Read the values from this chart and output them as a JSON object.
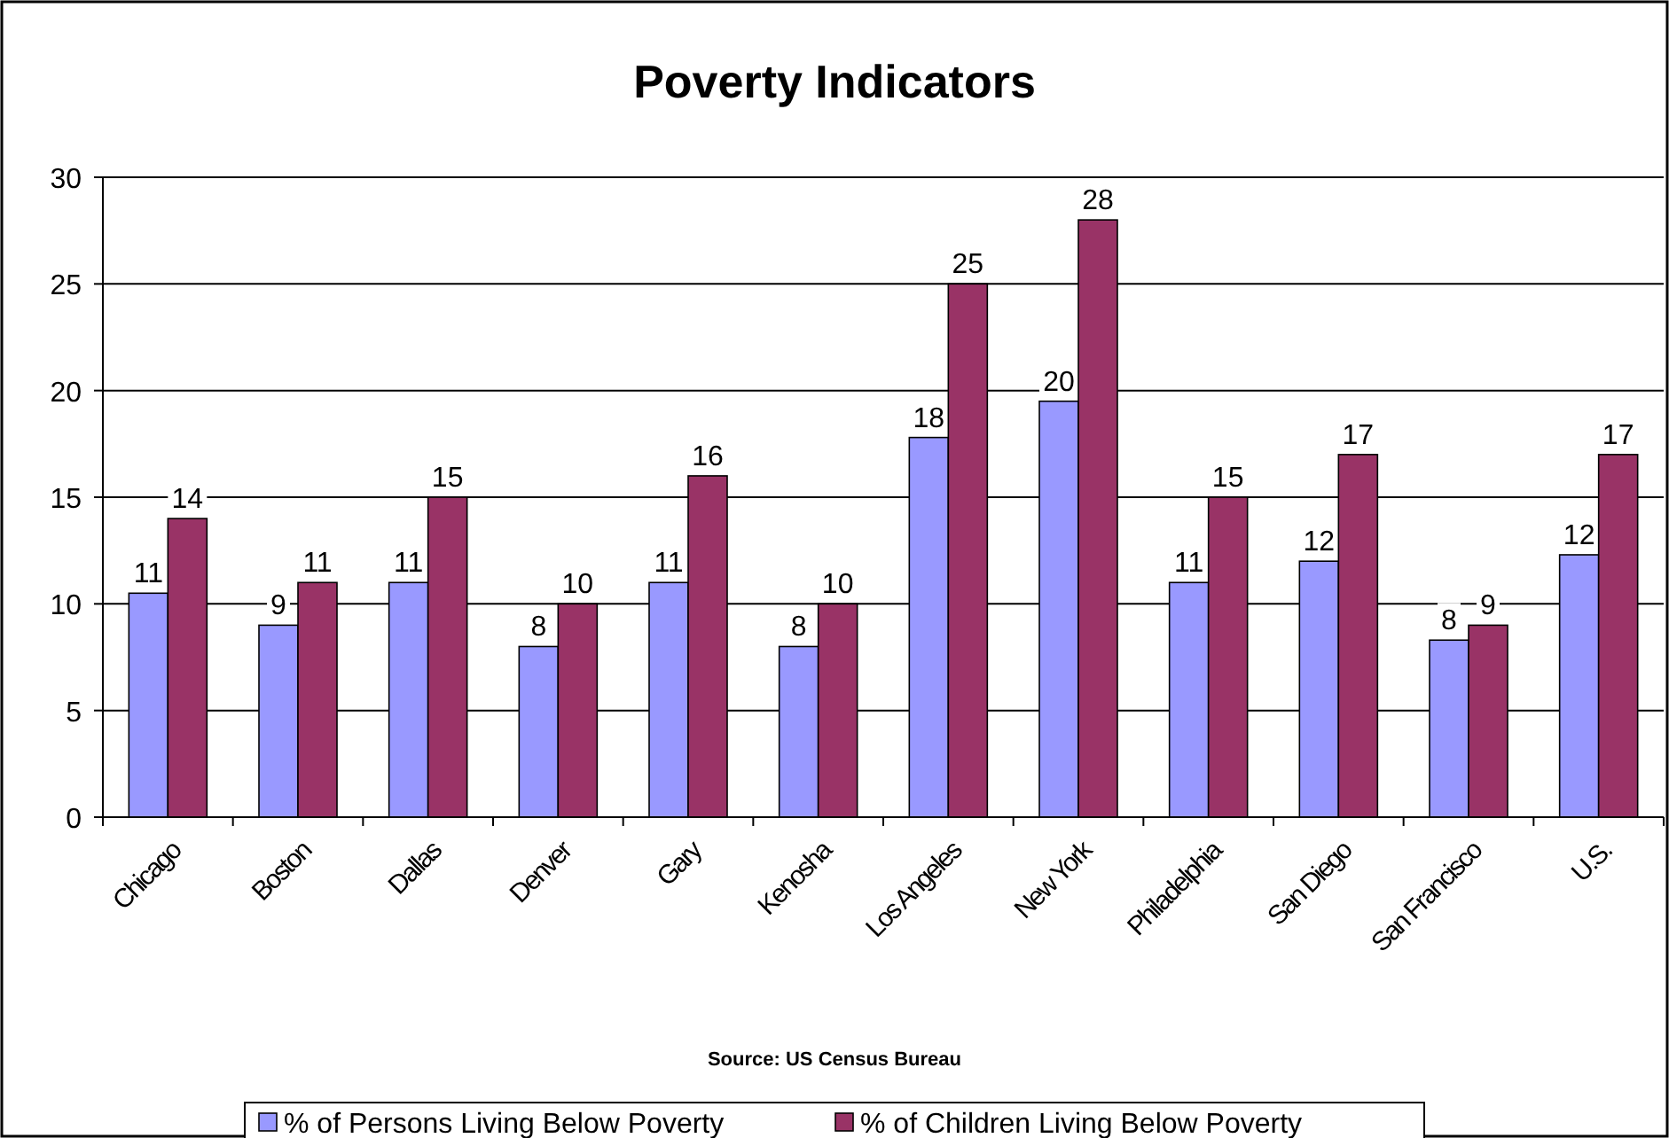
{
  "chart_data": {
    "type": "bar",
    "title": "Poverty Indicators",
    "categories": [
      "Chicago",
      "Boston",
      "Dallas",
      "Denver",
      "Gary",
      "Kenosha",
      "Los Angeles",
      "New York",
      "Philadelphia",
      "San Diego",
      "San Francisco",
      "U.S."
    ],
    "series": [
      {
        "name": "% of Persons Living Below Poverty",
        "color": "#9999ff",
        "values": [
          10.5,
          9,
          11,
          8,
          11,
          8,
          17.8,
          19.5,
          11,
          12,
          8.3,
          12.3
        ],
        "value_labels": [
          "11",
          "9",
          "11",
          "8",
          "11",
          "8",
          "18",
          "20",
          "11",
          "12",
          "8",
          "12"
        ]
      },
      {
        "name": "% of Children Living Below Poverty",
        "color": "#993366",
        "values": [
          14,
          11,
          15,
          10,
          16,
          10,
          25,
          28,
          15,
          17,
          9,
          17
        ],
        "value_labels": [
          "14",
          "11",
          "15",
          "10",
          "16",
          "10",
          "25",
          "28",
          "15",
          "17",
          "9",
          "17"
        ]
      }
    ],
    "ylim": [
      0,
      30
    ],
    "yticks": [
      0,
      5,
      10,
      15,
      20,
      25,
      30
    ],
    "grid": "y",
    "legend": "bottom",
    "annotations": [
      "Source: US Census Bureau"
    ]
  }
}
